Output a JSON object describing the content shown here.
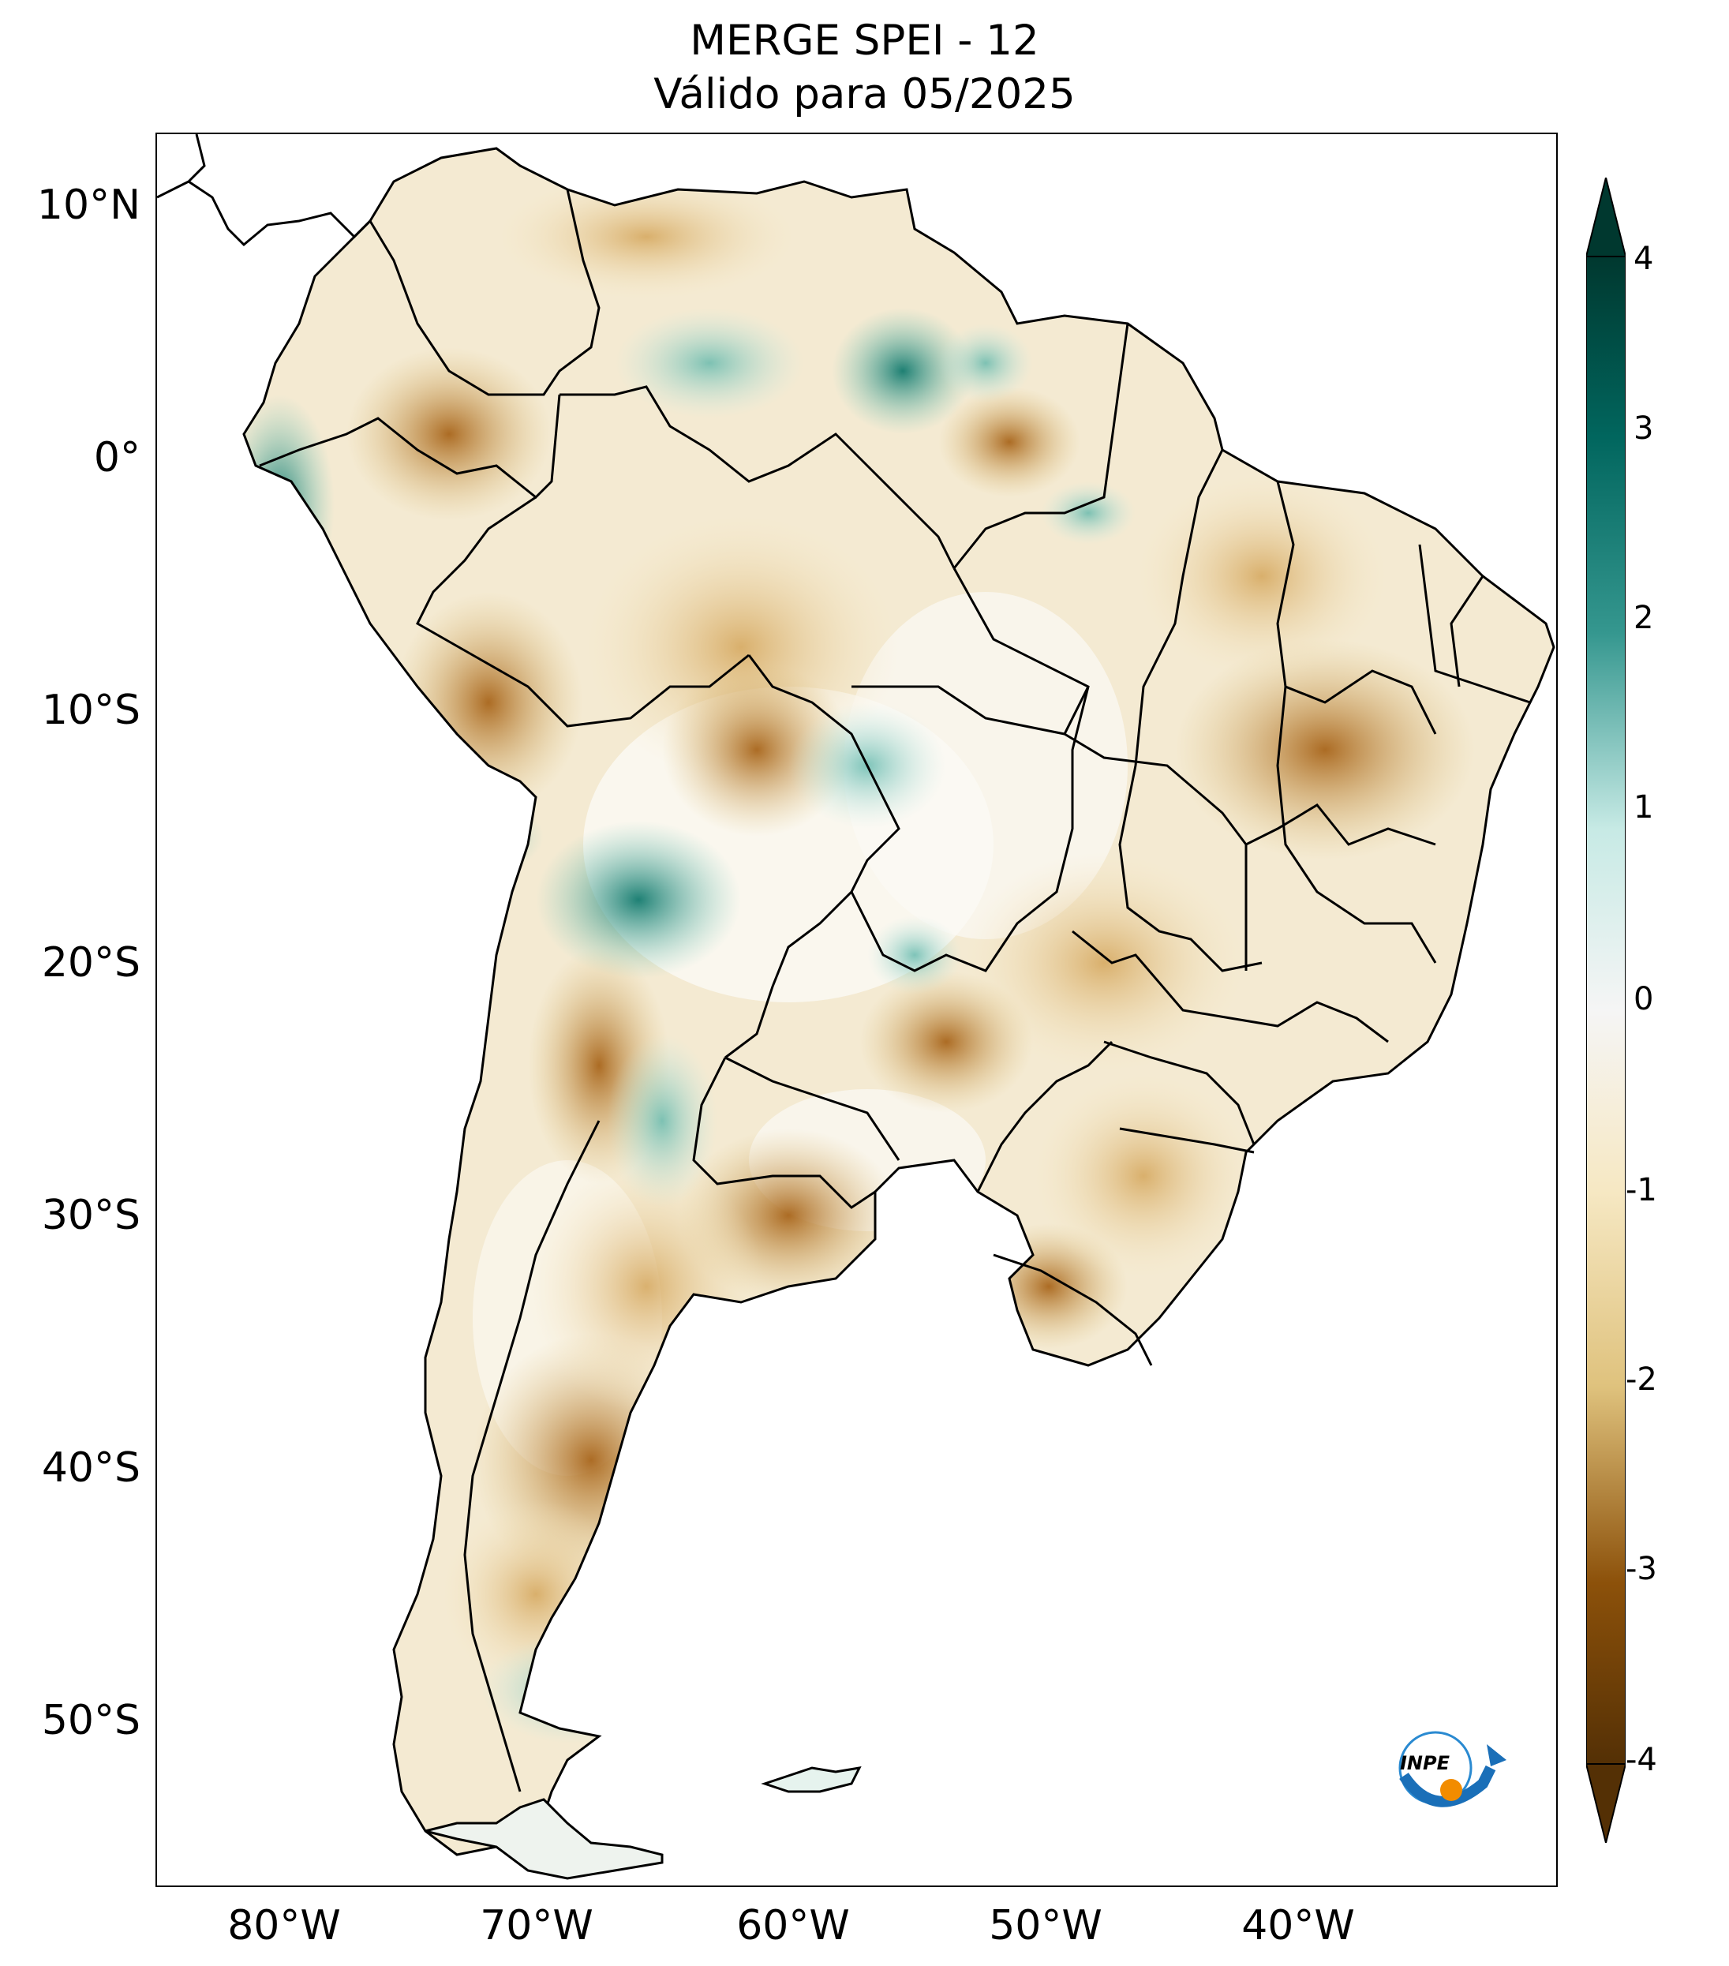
{
  "title": {
    "line1": "MERGE   SPEI - 12",
    "line2": "Válido para 05/2025"
  },
  "map": {
    "variable": "SPEI-12",
    "source": "MERGE",
    "region": "South America",
    "lat_ticks": [
      "10°N",
      "0°",
      "10°S",
      "20°S",
      "30°S",
      "40°S",
      "50°S"
    ],
    "lon_ticks": [
      "80°W",
      "70°W",
      "60°W",
      "50°W",
      "40°W"
    ]
  },
  "colorbar": {
    "ticks": [
      "4",
      "3",
      "2",
      "1",
      "0",
      "-1",
      "-2",
      "-3",
      "-4"
    ],
    "min": -4,
    "max": 4,
    "colors": {
      "wet_max": "#00382f",
      "wet_mid": "#35978f",
      "wet_low": "#c7eae5",
      "neutral": "#f5f5f5",
      "dry_low": "#f6e8c3",
      "dry_mid": "#bf812d",
      "dry_max": "#543005"
    }
  },
  "logo": {
    "text": "INPE"
  }
}
